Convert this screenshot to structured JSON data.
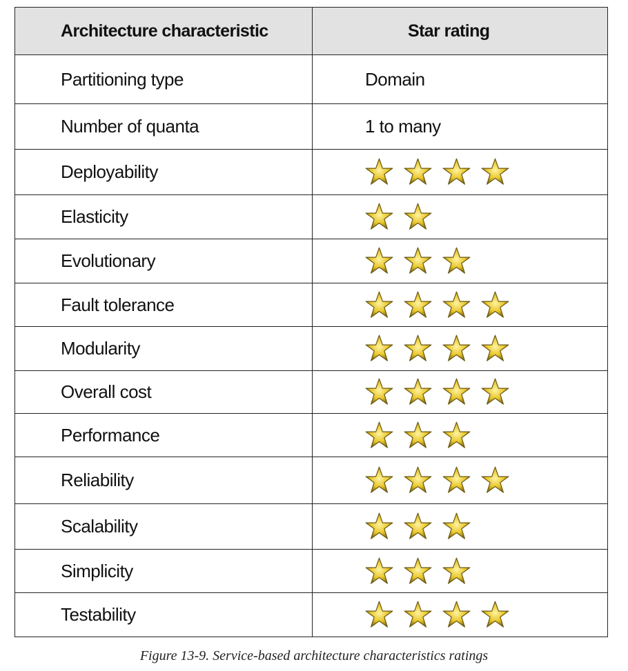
{
  "table": {
    "headers": [
      "Architecture characteristic",
      "Star rating"
    ],
    "rows": [
      {
        "name": "Partitioning type",
        "text": "Domain"
      },
      {
        "name": "Number of quanta",
        "text": "1 to many"
      },
      {
        "name": "Deployability",
        "stars": 4
      },
      {
        "name": "Elasticity",
        "stars": 2
      },
      {
        "name": "Evolutionary",
        "stars": 3
      },
      {
        "name": "Fault tolerance",
        "stars": 4
      },
      {
        "name": "Modularity",
        "stars": 4
      },
      {
        "name": "Overall cost",
        "stars": 4
      },
      {
        "name": "Performance",
        "stars": 3
      },
      {
        "name": "Reliability",
        "stars": 4
      },
      {
        "name": "Scalability",
        "stars": 3
      },
      {
        "name": "Simplicity",
        "stars": 3
      },
      {
        "name": "Testability",
        "stars": 4
      }
    ]
  },
  "caption": "Figure 13-9. Service-based architecture characteristics ratings",
  "colors": {
    "header_bg": "#e2e2e2",
    "star_light": "#fff3a0",
    "star_mid": "#e8c62a",
    "star_dark": "#6b5a12"
  }
}
